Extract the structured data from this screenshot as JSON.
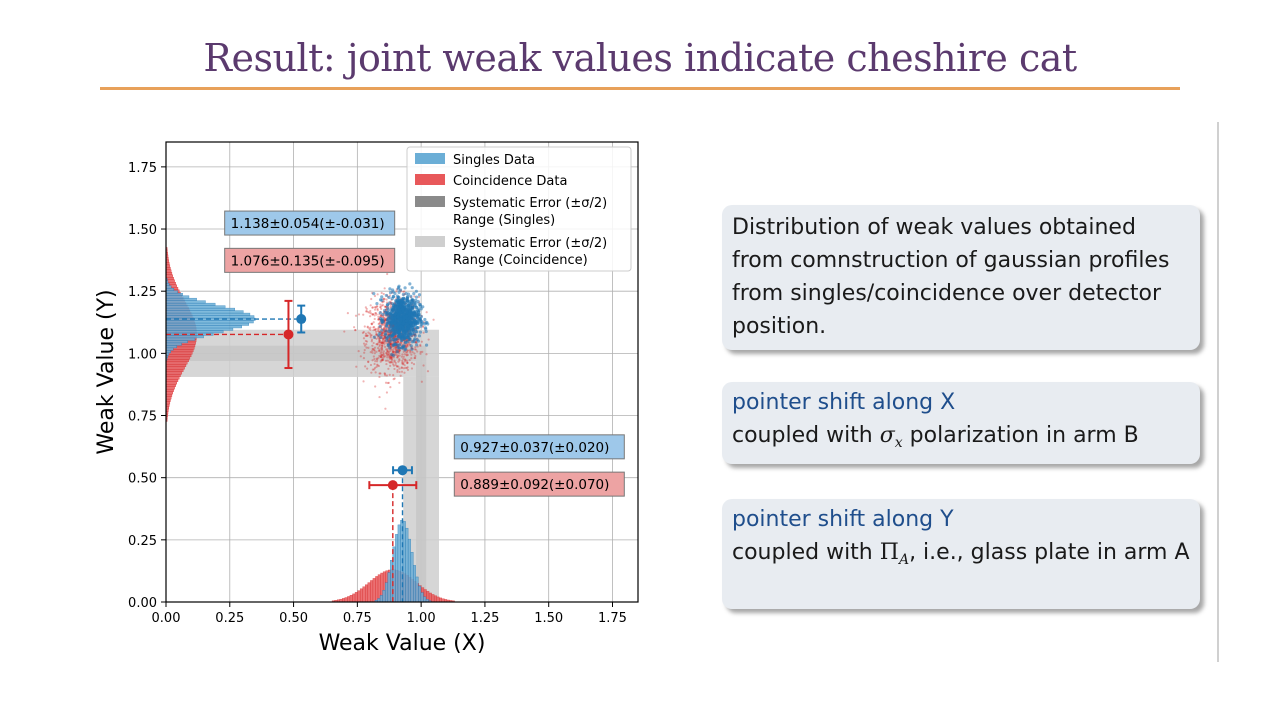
{
  "slide": {
    "title": "Result: joint weak values indicate cheshire cat"
  },
  "boxes": {
    "description": "Distribution of weak values obtained from comnstruction of gaussian profiles from singles/coincidence over detector position.",
    "x_head": "pointer shift along X",
    "x_body_pre": "coupled with ",
    "x_symbol": "σ",
    "x_sub": "x",
    "x_body_post": " polarization in arm B",
    "y_head": "pointer shift along Y",
    "y_body_pre": "coupled with ",
    "y_symbol": "Π",
    "y_sub": "A",
    "y_body_post": ", i.e., glass plate in arm A"
  },
  "colors": {
    "singles": "#1f77b4",
    "coincidence": "#d62728",
    "singles_fill": "#6baed6",
    "coincidence_fill": "#e8585a",
    "sys_singles": "#8a8a8a",
    "sys_coinc": "#cfcfcf"
  },
  "chart_data": {
    "type": "scatter",
    "xlabel": "Weak Value (X)",
    "ylabel": "Weak Value (Y)",
    "xlim": [
      0.0,
      1.85
    ],
    "ylim": [
      0.0,
      1.85
    ],
    "xticks": [
      0.0,
      0.25,
      0.5,
      0.75,
      1.0,
      1.25,
      1.5,
      1.75
    ],
    "yticks": [
      0.0,
      0.25,
      0.5,
      0.75,
      1.0,
      1.25,
      1.5,
      1.75
    ],
    "tick_labels": [
      "0.00",
      "0.25",
      "0.50",
      "0.75",
      "1.00",
      "1.25",
      "1.50",
      "1.75"
    ],
    "grid": true,
    "legend_position": "top-right",
    "legend": [
      {
        "label": "Singles Data",
        "kind": "singles"
      },
      {
        "label": "Coincidence Data",
        "kind": "coinc"
      },
      {
        "label": "Systematic Error (±σ/2)",
        "label2": " Range (Singles)",
        "kind": "sys_singles"
      },
      {
        "label": "Systematic Error (±σ/2)",
        "label2": " Range (Coincidence)",
        "kind": "sys_coinc"
      }
    ],
    "scatter_clouds": [
      {
        "name": "Singles Data",
        "center": [
          0.927,
          1.138
        ],
        "spread": [
          0.037,
          0.054
        ]
      },
      {
        "name": "Coincidence Data",
        "center": [
          0.889,
          1.076
        ],
        "spread": [
          0.092,
          0.135
        ]
      }
    ],
    "mean_points": [
      {
        "series": "Singles Data",
        "x": 0.927,
        "y": 0.53,
        "xerr": 0.037,
        "direction": "x"
      },
      {
        "series": "Coincidence Data",
        "x": 0.889,
        "y": 0.47,
        "xerr": 0.092,
        "direction": "x"
      },
      {
        "series": "Singles Data",
        "x": 0.53,
        "y": 1.138,
        "yerr": 0.054,
        "direction": "y"
      },
      {
        "series": "Coincidence Data",
        "x": 0.48,
        "y": 1.076,
        "yerr": 0.135,
        "direction": "y"
      }
    ],
    "systematic_bands": [
      {
        "name": "Range (Singles)",
        "x_center": 1.0,
        "x_halfwidth": 0.02,
        "y_center": 1.0,
        "y_halfwidth": 0.031
      },
      {
        "name": "Range (Coincidence)",
        "x_center": 1.0,
        "x_halfwidth": 0.07,
        "y_center": 1.0,
        "y_halfwidth": 0.095
      }
    ],
    "annotations": [
      {
        "text": "1.138±0.054(±-0.031)",
        "kind": "singles",
        "x": 0.23,
        "y": 1.52
      },
      {
        "text": "1.076±0.135(±-0.095)",
        "kind": "coinc",
        "x": 0.23,
        "y": 1.37
      },
      {
        "text": "0.927±0.037(±0.020)",
        "kind": "singles",
        "x": 1.13,
        "y": 0.62
      },
      {
        "text": "0.889±0.092(±0.070)",
        "kind": "coinc",
        "x": 1.13,
        "y": 0.47
      }
    ],
    "histograms": {
      "x_singles": {
        "mean": 0.927,
        "sd": 0.037,
        "peak": 0.33
      },
      "x_coinc": {
        "mean": 0.889,
        "sd": 0.092,
        "peak": 0.13
      },
      "y_singles": {
        "mean": 1.138,
        "sd": 0.054,
        "peak": 0.35
      },
      "y_coinc": {
        "mean": 1.076,
        "sd": 0.135,
        "peak": 0.12
      }
    }
  }
}
